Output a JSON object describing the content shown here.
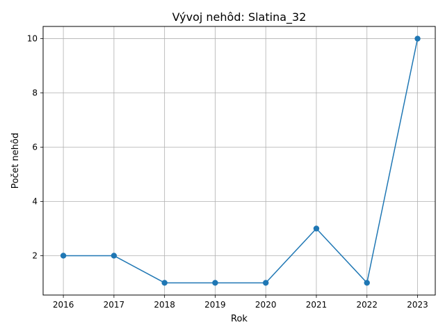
{
  "chart_data": {
    "type": "line",
    "title": "Vývoj nehôd: Slatina_32",
    "xlabel": "Rok",
    "ylabel": "Počet nehôd",
    "x": [
      2016,
      2017,
      2018,
      2019,
      2020,
      2021,
      2022,
      2023
    ],
    "series": [
      {
        "values": [
          2,
          2,
          1,
          1,
          1,
          3,
          1,
          10
        ],
        "color": "#1f77b4",
        "marker": "circle"
      }
    ],
    "xlim": [
      2015.6,
      2023.35
    ],
    "ylim": [
      0.55,
      10.45
    ],
    "yticks": [
      2,
      4,
      6,
      8,
      10
    ],
    "grid": true,
    "legend": "none"
  }
}
